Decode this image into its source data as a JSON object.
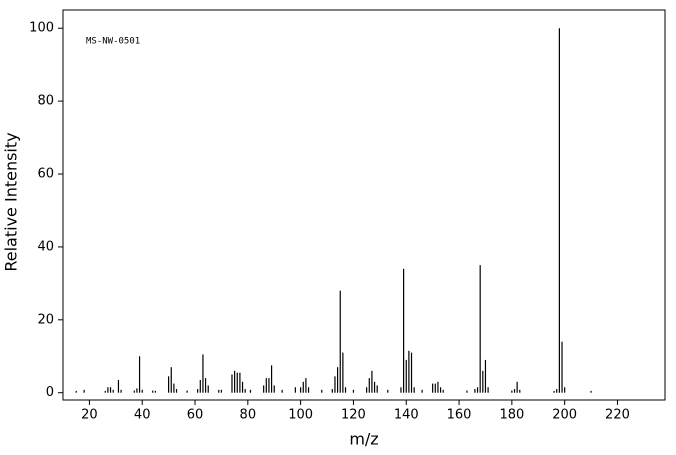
{
  "chart_data": {
    "type": "stem",
    "annotation": "MS-NW-0501",
    "x_label": "m/z",
    "y_label": "Relative Intensity",
    "color": "#000000",
    "xlim": [
      10,
      238
    ],
    "ylim": [
      -2,
      105
    ],
    "xticks": [
      20,
      40,
      60,
      80,
      100,
      120,
      140,
      160,
      180,
      200,
      220
    ],
    "yticks": [
      0,
      20,
      40,
      60,
      80,
      100
    ],
    "x": [
      15,
      18,
      26,
      27,
      28,
      29,
      31,
      32,
      37,
      38,
      39,
      40,
      44,
      45,
      50,
      51,
      52,
      53,
      57,
      61,
      62,
      63,
      64,
      65,
      69,
      70,
      74,
      75,
      76,
      77,
      78,
      79,
      81,
      86,
      87,
      88,
      89,
      90,
      93,
      98,
      100,
      101,
      102,
      103,
      108,
      112,
      113,
      114,
      115,
      116,
      117,
      120,
      125,
      126,
      127,
      128,
      129,
      133,
      138,
      139,
      140,
      141,
      142,
      143,
      146,
      150,
      151,
      152,
      153,
      154,
      163,
      166,
      167,
      168,
      169,
      170,
      171,
      180,
      181,
      182,
      183,
      196,
      197,
      198,
      199,
      200,
      210
    ],
    "values": [
      0.5,
      0.8,
      0.5,
      1.5,
      1.5,
      0.8,
      3.5,
      0.8,
      0.6,
      1.2,
      10,
      0.8,
      0.6,
      0.5,
      4.5,
      7,
      2.5,
      1,
      0.6,
      1,
      3.5,
      10.5,
      4,
      2,
      0.8,
      0.8,
      5,
      6,
      5.5,
      5.5,
      3,
      1,
      0.8,
      2,
      4,
      4,
      7.5,
      2,
      0.8,
      1.5,
      1.5,
      3,
      4,
      1.5,
      0.8,
      1,
      4.5,
      7,
      28,
      11,
      1.5,
      0.8,
      1.5,
      4,
      6,
      3,
      2,
      0.8,
      1.5,
      34,
      9,
      11.5,
      11,
      1.5,
      0.8,
      2.5,
      2.5,
      3,
      1.5,
      0.8,
      0.6,
      1,
      1.5,
      35,
      6,
      9,
      1.5,
      0.6,
      1,
      3,
      0.8,
      0.5,
      1,
      100,
      14,
      1.5,
      0.5
    ]
  }
}
